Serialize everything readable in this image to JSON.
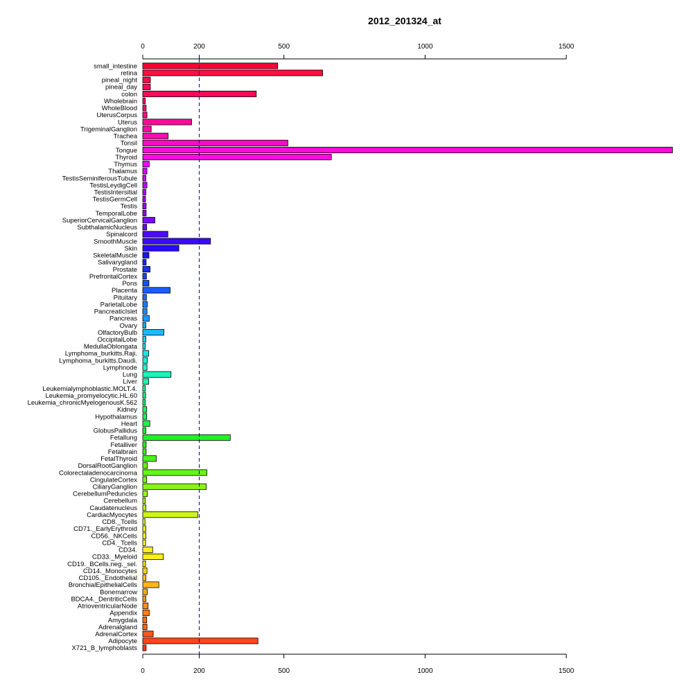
{
  "chart_data": {
    "type": "bar",
    "orientation": "horizontal",
    "title": "2012_201324_at",
    "xlabel": "",
    "ylabel": "",
    "xlim": [
      0,
      1880
    ],
    "x_ticks": [
      0,
      200,
      500,
      1000,
      1500
    ],
    "reference_line": 200,
    "categories": [
      "small_intestine",
      "retina",
      "pineal_night",
      "pineal_day",
      "colon",
      "Wholebrain",
      "WholeBlood",
      "UterusCorpus",
      "Uterus",
      "TrigeminalGanglion",
      "Trachea",
      "Tonsil",
      "Tongue",
      "Thyroid",
      "Thymus",
      "Thalamus",
      "TestisSeminiferousTubule",
      "TestisLeydigCell",
      "TestisIntersitial",
      "TestisGermCell",
      "Testis",
      "TemporalLobe",
      "SuperiorCervicalGanglion",
      "SubthalamicNucleus",
      "Spinalcord",
      "SmoothMuscle",
      "Skin",
      "SkeletalMuscle",
      "Salivarygland",
      "Prostate",
      "PrefrontalCortex",
      "Pons",
      "Placenta",
      "Pituitary",
      "ParietalLobe",
      "PancreaticIslet",
      "Pancreas",
      "Ovary",
      "OlfactoryBulb",
      "OccipitalLobe",
      "MedullaOblongata",
      "Lymphoma_burkitts.Raji.",
      "Lymphoma_burkitts.Daudi.",
      "Lymphnode",
      "Lung",
      "Liver",
      "Leukemialymphoblastic.MOLT.4.",
      "Leukemia_promyelocytic.HL.60",
      "Leukemia_chronicMyelogenousK.562",
      "Kidney",
      "Hypothalamus",
      "Heart",
      "GlobusPallidus",
      "Fetallung",
      "Fetalliver",
      "Fetalbrain",
      "FetalThyroid",
      "DorsalRootGanglion",
      "Colorectaladenocarcinoma",
      "CingulateCortex",
      "CiliaryGanglion",
      "CerebellumPeduncles",
      "Cerebellum",
      "Caudatenucleus",
      "CardiacMyocytes",
      "CD8._Tcells",
      "CD71._EarlyErythroid",
      "CD56._NKCells",
      "CD4._Tcells",
      "CD34.",
      "CD33._Myeloid",
      "CD19._BCells.neg._sel.",
      "CD14._Monocytes",
      "CD105._Endothelial",
      "BronchialEpithelialCells",
      "Bonemarrow",
      "BDCA4._DentriticCells",
      "AtrioventricularNode",
      "Appendix",
      "Amygdala",
      "Adrenalgland",
      "AdrenalCortex",
      "Adipocyte",
      "X721_B_lymphoblasts"
    ],
    "values": [
      478,
      637,
      27,
      27,
      402,
      9,
      12,
      15,
      173,
      30,
      90,
      514,
      1876,
      668,
      23,
      15,
      11,
      15,
      11,
      10,
      12,
      12,
      43,
      14,
      89,
      240,
      128,
      22,
      12,
      26,
      13,
      22,
      97,
      13,
      16,
      15,
      23,
      11,
      75,
      11,
      9,
      21,
      16,
      15,
      100,
      21,
      9,
      10,
      9,
      14,
      14,
      25,
      11,
      310,
      12,
      12,
      48,
      16,
      227,
      14,
      225,
      16,
      9,
      11,
      195,
      8,
      11,
      11,
      10,
      35,
      73,
      10,
      15,
      11,
      57,
      16,
      11,
      19,
      23,
      14,
      15,
      37,
      408,
      12
    ],
    "colors": [
      "#ff0033",
      "#ff0f40",
      "#ff0a4a",
      "#ff0a55",
      "#ff0a5a",
      "#ff0a66",
      "#ff0a70",
      "#ff0a80",
      "#ff0a99",
      "#ff0aa6",
      "#ff0ab3",
      "#ff0ac6",
      "#ff0ad9",
      "#ff0ae6",
      "#e60aff",
      "#d10aff",
      "#c40aff",
      "#b80aff",
      "#ad0aff",
      "#a20aff",
      "#970aff",
      "#8c0aff",
      "#7a0aff",
      "#6a0aff",
      "#4d0aff",
      "#3a0aff",
      "#2a0aff",
      "#1a14ff",
      "#1a26ff",
      "#1a33ff",
      "#1a40ff",
      "#1a4dff",
      "#1a5cff",
      "#1a6bff",
      "#1a7aff",
      "#1a8aff",
      "#1a99ff",
      "#1aaaff",
      "#1abbff",
      "#1accff",
      "#1adaf0",
      "#1ae6e6",
      "#1af0da",
      "#1af5cc",
      "#1af5bb",
      "#1af5aa",
      "#1af599",
      "#1af588",
      "#1af577",
      "#1af566",
      "#1af555",
      "#1af544",
      "#1af533",
      "#1af522",
      "#2af51a",
      "#3af51a",
      "#4af51a",
      "#5af51a",
      "#66f51a",
      "#77f51a",
      "#88f51a",
      "#99f51a",
      "#aaf51a",
      "#bbf51a",
      "#ccf51a",
      "#ddf51a",
      "#eef51a",
      "#f5f51a",
      "#fff51a",
      "#ffee1a",
      "#ffee1a",
      "#ffe01a",
      "#ffd21a",
      "#ffc41a",
      "#ffb61a",
      "#ffa81a",
      "#ff9a1a",
      "#ff8c1a",
      "#ff7e1a",
      "#ff701a",
      "#ff621a",
      "#ff541a",
      "#ff461a",
      "#ff3a1a"
    ]
  }
}
